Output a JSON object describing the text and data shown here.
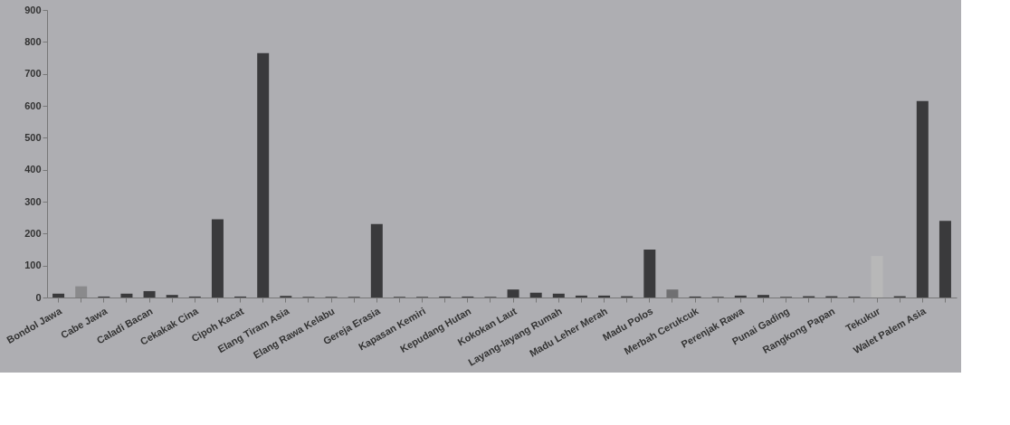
{
  "chart_data": {
    "type": "bar",
    "categories": [
      "Bondol Jawa",
      null,
      "Cabe Jawa",
      null,
      "Caladi Bacan",
      null,
      "Cekakak Cina",
      null,
      "Cipoh Kacat",
      null,
      "Elang Tiram Asia",
      null,
      "Elang Rawa Kelabu",
      null,
      "Gereja Erasia",
      null,
      "Kapasan Kemiri",
      null,
      "Kepudang Hutan",
      null,
      "Kokokan Laut",
      null,
      "Layang-layang Rumah",
      null,
      "Madu Leher Merah",
      null,
      "Madu Polos",
      null,
      "Merbah Cerukcuk",
      null,
      "Perenjak Rawa",
      null,
      "Punai Gading",
      null,
      "Rangkong Papan",
      null,
      "Tekukur",
      null,
      "Walet Palem Asia",
      null
    ],
    "values": [
      12,
      35,
      3,
      12,
      20,
      8,
      3,
      245,
      3,
      765,
      5,
      2,
      2,
      2,
      230,
      2,
      2,
      3,
      3,
      2,
      25,
      15,
      12,
      6,
      6,
      4,
      150,
      25,
      3,
      2,
      6,
      8,
      2,
      4,
      4,
      3,
      130,
      4,
      615,
      240
    ],
    "colors": [
      "#3a3a3c",
      "#8a8a8c",
      "#3a3a3c",
      "#3a3a3c",
      "#3a3a3c",
      "#3a3a3c",
      "#3a3a3c",
      "#3a3a3c",
      "#3a3a3c",
      "#3a3a3c",
      "#3a3a3c",
      "#3a3a3c",
      "#3a3a3c",
      "#3a3a3c",
      "#3a3a3c",
      "#3a3a3c",
      "#3a3a3c",
      "#3a3a3c",
      "#3a3a3c",
      "#3a3a3c",
      "#3a3a3c",
      "#3a3a3c",
      "#3a3a3c",
      "#3a3a3c",
      "#3a3a3c",
      "#3a3a3c",
      "#3a3a3c",
      "#707072",
      "#3a3a3c",
      "#3a3a3c",
      "#3a3a3c",
      "#3a3a3c",
      "#3a3a3c",
      "#3a3a3c",
      "#3a3a3c",
      "#3a3a3c",
      "#b8b8b8",
      "#3a3a3c",
      "#3a3a3c",
      "#3a3a3c"
    ],
    "ylim": [
      0,
      900
    ],
    "yticks": [
      0,
      100,
      200,
      300,
      400,
      500,
      600,
      700,
      800,
      900
    ],
    "grid": false
  }
}
